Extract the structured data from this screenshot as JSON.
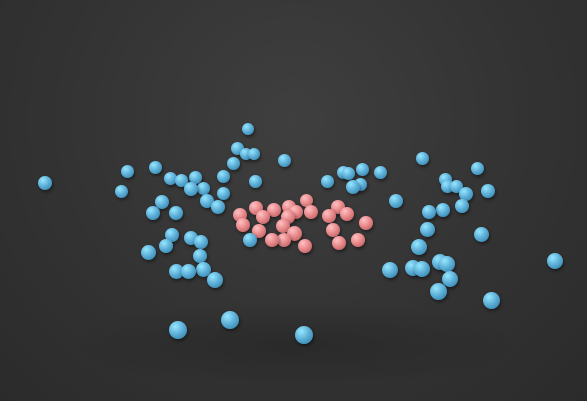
{
  "scene": {
    "background_color": "#333333",
    "sphere_colors": {
      "blue": "#5fb0d8",
      "pink": "#e88a8c"
    }
  }
}
